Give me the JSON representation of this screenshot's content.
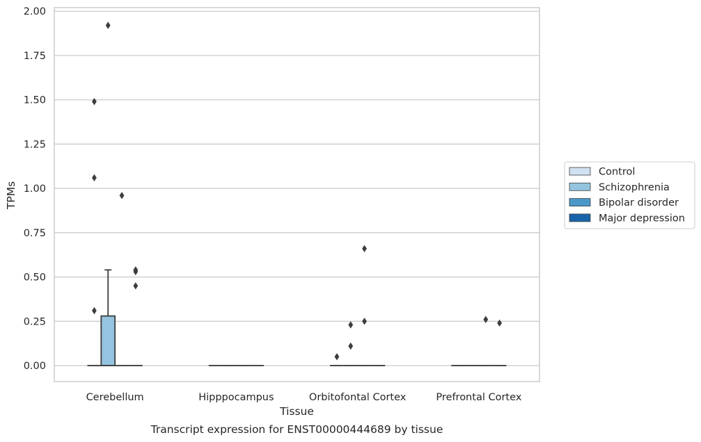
{
  "chart_data": {
    "type": "box",
    "xlabel": "Tissue",
    "ylabel": "TPMs",
    "caption": "Transcript expression for ENST00000444689 by tissue",
    "ylim": [
      -0.09,
      2.02
    ],
    "yticks": [
      "0.00",
      "0.25",
      "0.50",
      "0.75",
      "1.00",
      "1.25",
      "1.50",
      "1.75",
      "2.00"
    ],
    "grid": "horizontal",
    "legend_position": "right",
    "categories": [
      "Cerebellum",
      "Hipppocampus",
      "Orbitofontal Cortex",
      "Prefrontal Cortex"
    ],
    "series": [
      {
        "name": "Control",
        "color": "#d0e1f2"
      },
      {
        "name": "Schizophrenia",
        "color": "#94c4df"
      },
      {
        "name": "Bipolar disorder",
        "color": "#4a98c9"
      },
      {
        "name": "Major depression",
        "color": "#1764ab"
      }
    ],
    "boxes": [
      {
        "category": 0,
        "series": 0,
        "q1": 0,
        "median": 0,
        "q3": 0,
        "whisker_low": 0,
        "whisker_high": 0,
        "outliers": [
          1.49,
          1.06,
          0.31
        ]
      },
      {
        "category": 0,
        "series": 1,
        "q1": 0,
        "median": 0,
        "q3": 0.28,
        "whisker_low": 0,
        "whisker_high": 0.54,
        "outliers": [
          1.92
        ]
      },
      {
        "category": 0,
        "series": 2,
        "q1": 0,
        "median": 0,
        "q3": 0,
        "whisker_low": 0,
        "whisker_high": 0,
        "outliers": [
          0.96
        ]
      },
      {
        "category": 0,
        "series": 3,
        "q1": 0,
        "median": 0,
        "q3": 0,
        "whisker_low": 0,
        "whisker_high": 0,
        "outliers": [
          0.54,
          0.53,
          0.45
        ]
      },
      {
        "category": 1,
        "series": 0,
        "q1": 0,
        "median": 0,
        "q3": 0,
        "whisker_low": 0,
        "whisker_high": 0,
        "outliers": []
      },
      {
        "category": 1,
        "series": 1,
        "q1": 0,
        "median": 0,
        "q3": 0,
        "whisker_low": 0,
        "whisker_high": 0,
        "outliers": []
      },
      {
        "category": 1,
        "series": 2,
        "q1": 0,
        "median": 0,
        "q3": 0,
        "whisker_low": 0,
        "whisker_high": 0,
        "outliers": []
      },
      {
        "category": 1,
        "series": 3,
        "q1": 0,
        "median": 0,
        "q3": 0,
        "whisker_low": 0,
        "whisker_high": 0,
        "outliers": []
      },
      {
        "category": 2,
        "series": 0,
        "q1": 0,
        "median": 0,
        "q3": 0,
        "whisker_low": 0,
        "whisker_high": 0,
        "outliers": [
          0.05
        ]
      },
      {
        "category": 2,
        "series": 1,
        "q1": 0,
        "median": 0,
        "q3": 0,
        "whisker_low": 0,
        "whisker_high": 0,
        "outliers": [
          0.23,
          0.11
        ]
      },
      {
        "category": 2,
        "series": 2,
        "q1": 0,
        "median": 0,
        "q3": 0,
        "whisker_low": 0,
        "whisker_high": 0,
        "outliers": [
          0.66,
          0.25
        ]
      },
      {
        "category": 2,
        "series": 3,
        "q1": 0,
        "median": 0,
        "q3": 0,
        "whisker_low": 0,
        "whisker_high": 0,
        "outliers": []
      },
      {
        "category": 3,
        "series": 0,
        "q1": 0,
        "median": 0,
        "q3": 0,
        "whisker_low": 0,
        "whisker_high": 0,
        "outliers": []
      },
      {
        "category": 3,
        "series": 1,
        "q1": 0,
        "median": 0,
        "q3": 0,
        "whisker_low": 0,
        "whisker_high": 0,
        "outliers": []
      },
      {
        "category": 3,
        "series": 2,
        "q1": 0,
        "median": 0,
        "q3": 0,
        "whisker_low": 0,
        "whisker_high": 0,
        "outliers": [
          0.26
        ]
      },
      {
        "category": 3,
        "series": 3,
        "q1": 0,
        "median": 0,
        "q3": 0,
        "whisker_low": 0,
        "whisker_high": 0,
        "outliers": [
          0.24
        ]
      }
    ]
  }
}
